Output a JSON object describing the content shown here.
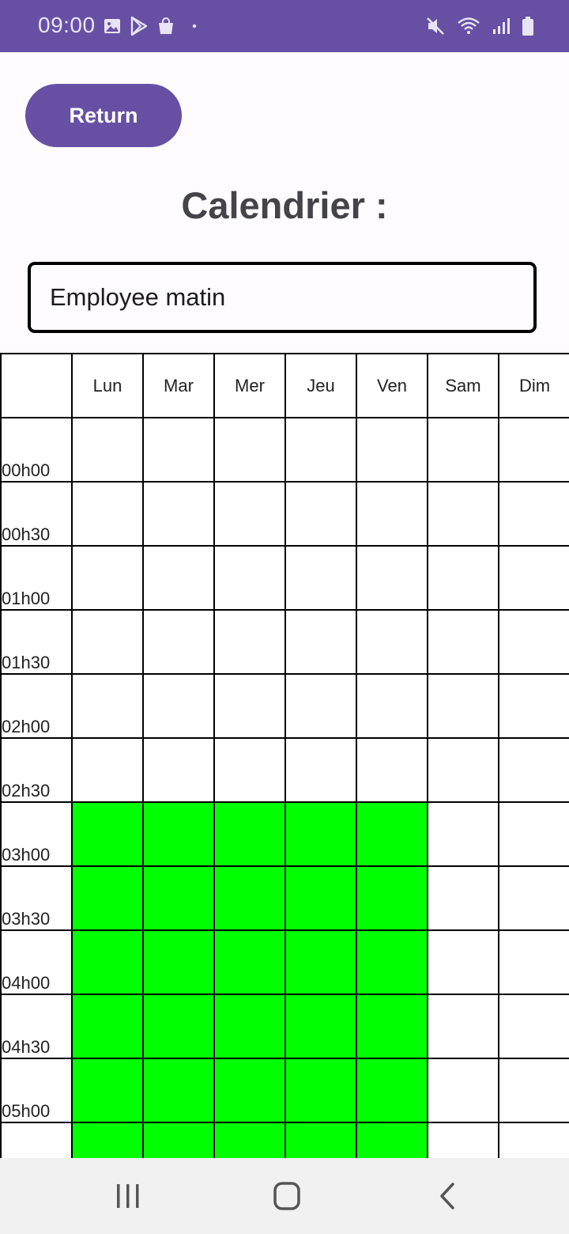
{
  "status_bar": {
    "time": "09:00",
    "left_icons": [
      "image-icon",
      "play-store-icon",
      "shopping-bag-icon",
      "dot-icon"
    ],
    "right_icons": [
      "mute-icon",
      "wifi-icon",
      "signal-icon",
      "battery-icon"
    ],
    "background": "#6750a4"
  },
  "header": {
    "return_label": "Return",
    "title": "Calendrier :"
  },
  "selector": {
    "value": "Employee matin"
  },
  "calendar": {
    "days": [
      "Lun",
      "Mar",
      "Mer",
      "Jeu",
      "Ven",
      "Sam",
      "Dim"
    ],
    "active_color": "#00ff00",
    "rows": [
      {
        "time": "00h00",
        "slots": [
          0,
          0,
          0,
          0,
          0,
          0,
          0
        ]
      },
      {
        "time": "00h30",
        "slots": [
          0,
          0,
          0,
          0,
          0,
          0,
          0
        ]
      },
      {
        "time": "01h00",
        "slots": [
          0,
          0,
          0,
          0,
          0,
          0,
          0
        ]
      },
      {
        "time": "01h30",
        "slots": [
          0,
          0,
          0,
          0,
          0,
          0,
          0
        ]
      },
      {
        "time": "02h00",
        "slots": [
          0,
          0,
          0,
          0,
          0,
          0,
          0
        ]
      },
      {
        "time": "02h30",
        "slots": [
          0,
          0,
          0,
          0,
          0,
          0,
          0
        ]
      },
      {
        "time": "03h00",
        "slots": [
          1,
          1,
          1,
          1,
          1,
          0,
          0
        ]
      },
      {
        "time": "03h30",
        "slots": [
          1,
          1,
          1,
          1,
          1,
          0,
          0
        ]
      },
      {
        "time": "04h00",
        "slots": [
          1,
          1,
          1,
          1,
          1,
          0,
          0
        ]
      },
      {
        "time": "04h30",
        "slots": [
          1,
          1,
          1,
          1,
          1,
          0,
          0
        ]
      },
      {
        "time": "05h00",
        "slots": [
          1,
          1,
          1,
          1,
          1,
          0,
          0
        ]
      },
      {
        "time": "",
        "slots": [
          1,
          1,
          1,
          1,
          1,
          0,
          0
        ]
      }
    ]
  },
  "nav_bar": {
    "buttons": [
      "recent-apps-icon",
      "home-icon",
      "back-icon"
    ]
  }
}
